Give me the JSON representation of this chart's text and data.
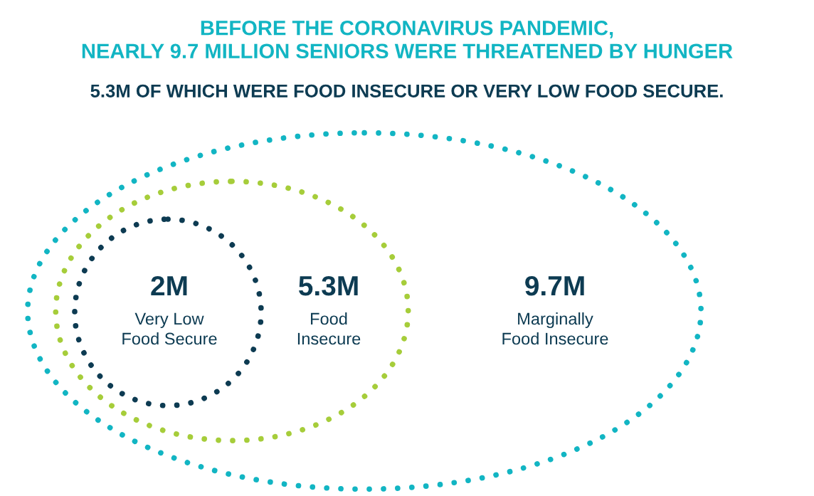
{
  "chart_data": {
    "type": "other",
    "title": "BEFORE THE CORONAVIRUS PANDEMIC,\nNEARLY 9.7 MILLION SENIORS WERE THREATENED BY HUNGER",
    "subtitle": "5.3M OF WHICH WERE FOOD INSECURE OR VERY LOW FOOD SECURE.",
    "categories": [
      "Very Low\nFood Secure",
      "Food\nInsecure",
      "Marginally\nFood Insecure"
    ],
    "values": [
      2,
      5.3,
      9.7
    ],
    "value_labels": [
      "2M",
      "5.3M",
      "9.7M"
    ],
    "colors": [
      "#0d3b52",
      "#a6cd3a",
      "#12b5c3"
    ]
  }
}
